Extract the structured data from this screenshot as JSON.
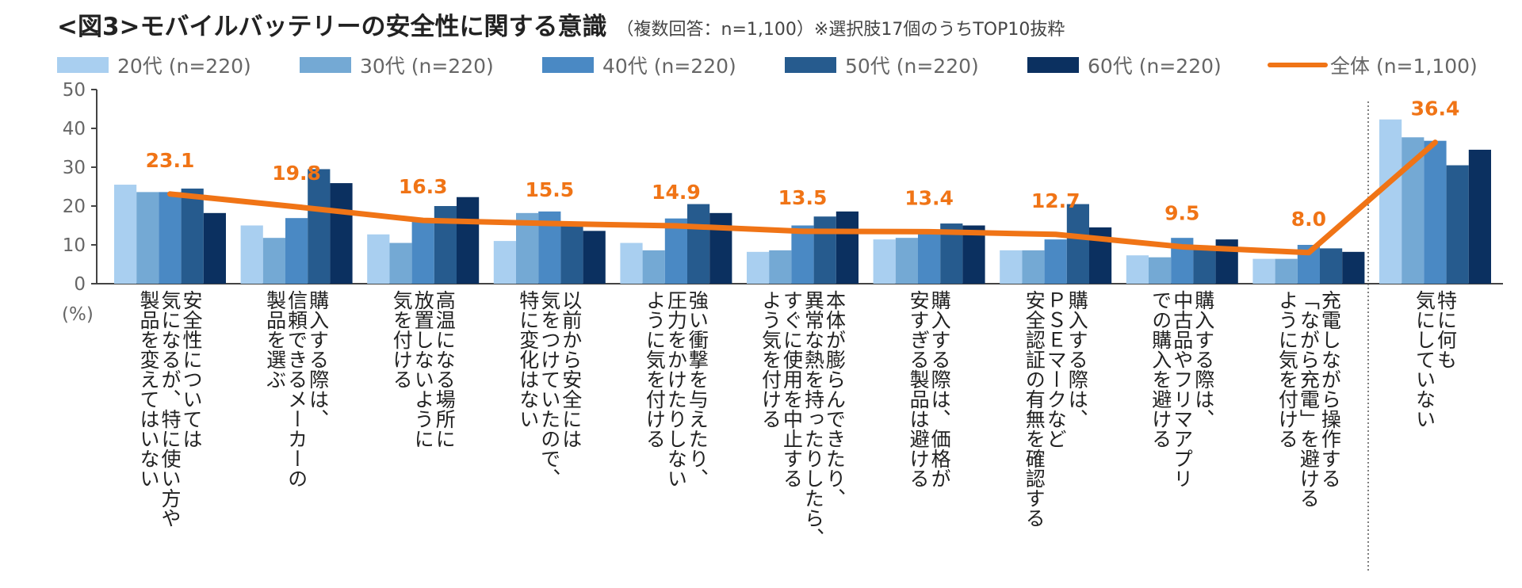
{
  "chart_data": {
    "type": "bar",
    "title": "<図3>モバイルバッテリーの安全性に関する意識",
    "subtitle": "（複数回答：n=1,100）※選択肢17個のうちTOP10抜粋",
    "ylabel": "(%)",
    "ylim": [
      0,
      50
    ],
    "yticks": [
      "0",
      "10",
      "20",
      "30",
      "40",
      "50"
    ],
    "grid": false,
    "legend_position": "top",
    "categories": [
      [
        "安全性については",
        "気になるが、特に使い方や",
        "製品を変えてはいない"
      ],
      [
        "購入する際は、",
        "信頼できるメーカーの",
        "製品を選ぶ"
      ],
      [
        "高温になる場所に",
        "放置しないように",
        "気を付ける"
      ],
      [
        "以前から安全には",
        "気をつけていたので、",
        "特に変化はない"
      ],
      [
        "強い衝撃を与えたり、",
        "圧力をかけたりしない",
        "ように気を付ける"
      ],
      [
        "本体が膨らんできたり、",
        "異常な熱を持ったりしたら、",
        "すぐに使用を中止する",
        "よう気を付ける"
      ],
      [
        "購入する際は、価格が",
        "安すぎる製品は避ける"
      ],
      [
        "購入する際は、",
        "ＰＳＥマークなど",
        "安全認証の有無を確認する"
      ],
      [
        "購入する際は、",
        "中古品やフリマアプリ",
        "での購入を避ける"
      ],
      [
        "充電しながら操作する",
        "「ながら充電」を避ける",
        "ように気を付ける"
      ],
      [
        "特に何も",
        "気にしていない"
      ]
    ],
    "series": [
      {
        "name": "20代 (n=220)",
        "type": "bar",
        "color": "#a9cff0",
        "values": [
          25.5,
          15.0,
          12.7,
          11.0,
          10.5,
          8.2,
          11.4,
          8.6,
          7.3,
          6.4,
          42.3
        ]
      },
      {
        "name": "30代 (n=220)",
        "type": "bar",
        "color": "#74a9d4",
        "values": [
          23.6,
          11.8,
          10.5,
          18.2,
          8.6,
          8.6,
          11.8,
          8.6,
          6.8,
          6.4,
          37.7
        ]
      },
      {
        "name": "40代 (n=220)",
        "type": "bar",
        "color": "#4a89c4",
        "values": [
          23.6,
          16.9,
          16.0,
          18.6,
          16.8,
          15.0,
          13.6,
          11.4,
          11.8,
          10.0,
          36.8
        ]
      },
      {
        "name": "50代 (n=220)",
        "type": "bar",
        "color": "#265b8e",
        "values": [
          24.5,
          29.5,
          20.0,
          15.0,
          20.5,
          17.3,
          15.5,
          20.5,
          9.5,
          9.1,
          30.5
        ]
      },
      {
        "name": "60代 (n=220)",
        "type": "bar",
        "color": "#0b3060",
        "values": [
          18.2,
          25.9,
          22.3,
          13.6,
          18.2,
          18.6,
          15.0,
          14.5,
          11.4,
          8.2,
          34.5
        ]
      },
      {
        "name": "全体 (n=1,100)",
        "type": "line",
        "color": "#f07416",
        "values": [
          23.1,
          19.8,
          16.3,
          15.5,
          14.9,
          13.5,
          13.4,
          12.7,
          9.5,
          8.0,
          36.4
        ],
        "data_labels": [
          "23.1",
          "19.8",
          "16.3",
          "15.5",
          "14.9",
          "13.5",
          "13.4",
          "12.7",
          "9.5",
          "8.0",
          "36.4"
        ]
      }
    ]
  }
}
